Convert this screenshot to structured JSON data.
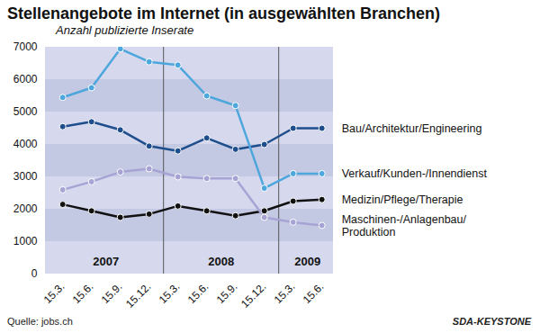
{
  "chart_data": {
    "type": "line",
    "title": "Stellenangebote im Internet (in ausgewählten Branchen)",
    "subtitle": "Anzahl publizierte Inserate",
    "source": "Quelle: jobs.ch",
    "credit": "SDA-KEYSTONE",
    "categories": [
      "15.3.",
      "15.6.",
      "15.9.",
      "15.12.",
      "15.3.",
      "15.6.",
      "15.9.",
      "15.12.",
      "15.3.",
      "15.6."
    ],
    "year_groups": [
      {
        "label": "2007",
        "count": 4
      },
      {
        "label": "2008",
        "count": 4
      },
      {
        "label": "2009",
        "count": 2
      }
    ],
    "series": [
      {
        "name": "Bau/Architektur/Engineering",
        "color": "#1f4e8c",
        "marker": "circle",
        "values": [
          4550,
          4700,
          4450,
          3950,
          3800,
          4200,
          3850,
          4000,
          4500,
          4500
        ]
      },
      {
        "name": "Verkauf/Kunden-/Innendienst",
        "color": "#4da6dc",
        "marker": "circle",
        "values": [
          5450,
          5750,
          6950,
          6550,
          6450,
          5500,
          5200,
          2650,
          3100,
          3100
        ]
      },
      {
        "name": "Medizin/Pflege/Therapie",
        "color": "#111111",
        "marker": "circle",
        "values": [
          2150,
          1950,
          1750,
          1850,
          2100,
          1950,
          1800,
          1950,
          2250,
          2300
        ]
      },
      {
        "name": "Maschinen-/Anlagenbau/Produktion",
        "color": "#a7a3d4",
        "marker": "circle",
        "values": [
          2600,
          2850,
          3150,
          3250,
          3000,
          2950,
          2950,
          1750,
          1600,
          1500
        ]
      }
    ],
    "ylim": [
      0,
      7000
    ],
    "yticks": [
      0,
      1000,
      2000,
      3000,
      4000,
      5000,
      6000,
      7000
    ],
    "grid": true
  }
}
